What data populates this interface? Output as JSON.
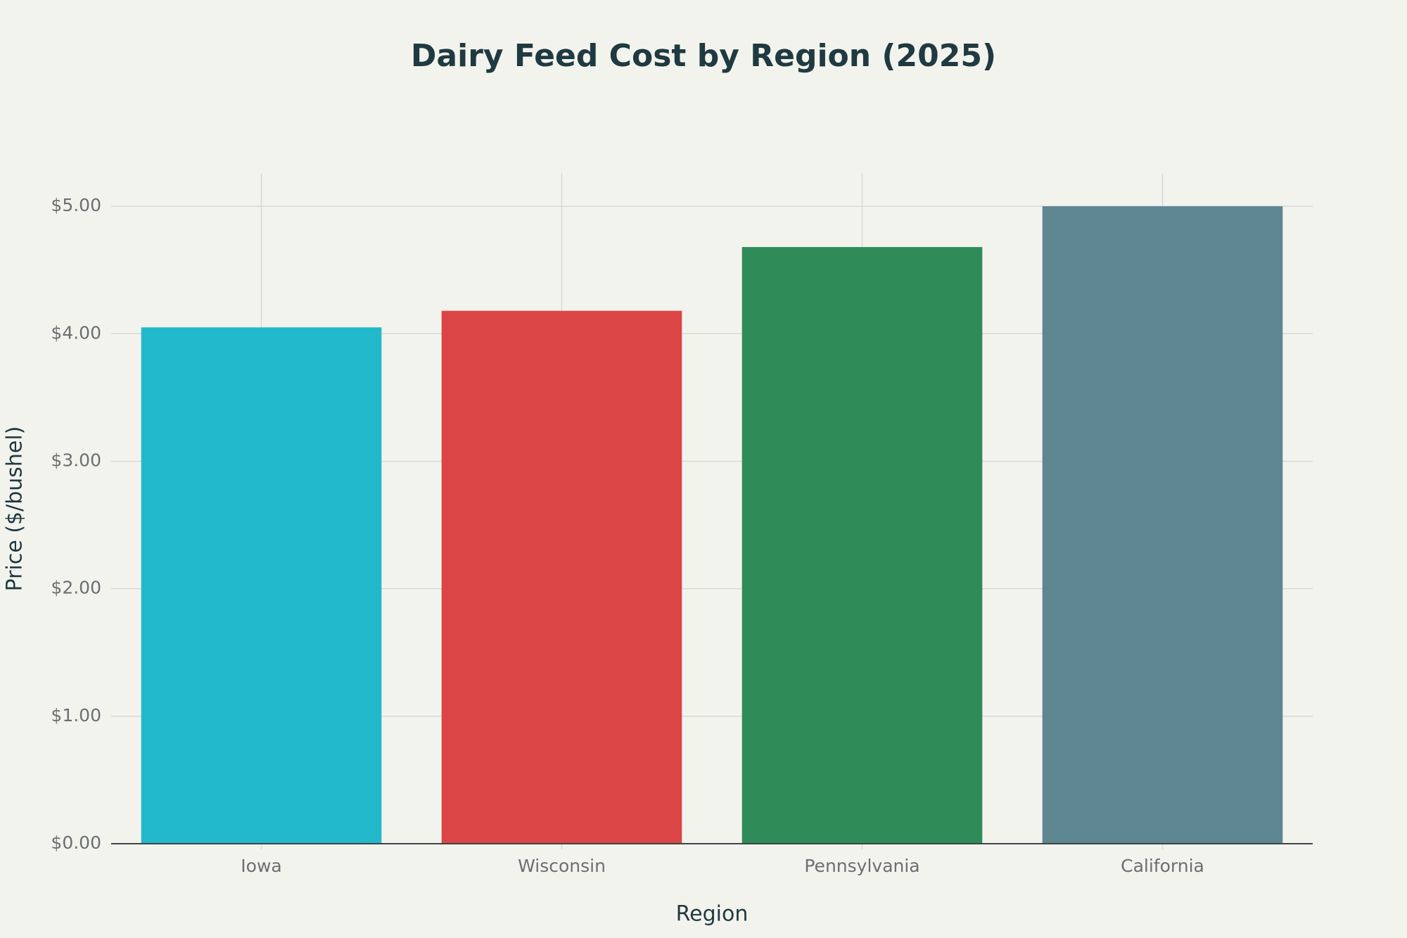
{
  "chart_data": {
    "type": "bar",
    "title": "Dairy Feed Cost by Region (2025)",
    "x_label": "Region",
    "y_label": "Price ($/bushel)",
    "categories": [
      "Iowa",
      "Wisconsin",
      "Pennsylvania",
      "California"
    ],
    "values": [
      4.05,
      4.18,
      4.68,
      5.0
    ],
    "colors": [
      "#21b8cc",
      "#db4545",
      "#2e8b57",
      "#5e8690"
    ],
    "ylim": [
      0,
      5.26
    ],
    "yticks": [
      {
        "value": 0,
        "label": "$0.00"
      },
      {
        "value": 1,
        "label": "$1.00"
      },
      {
        "value": 2,
        "label": "$2.00"
      },
      {
        "value": 3,
        "label": "$3.00"
      },
      {
        "value": 4,
        "label": "$4.00"
      },
      {
        "value": 5,
        "label": "$5.00"
      }
    ],
    "grid": true
  }
}
